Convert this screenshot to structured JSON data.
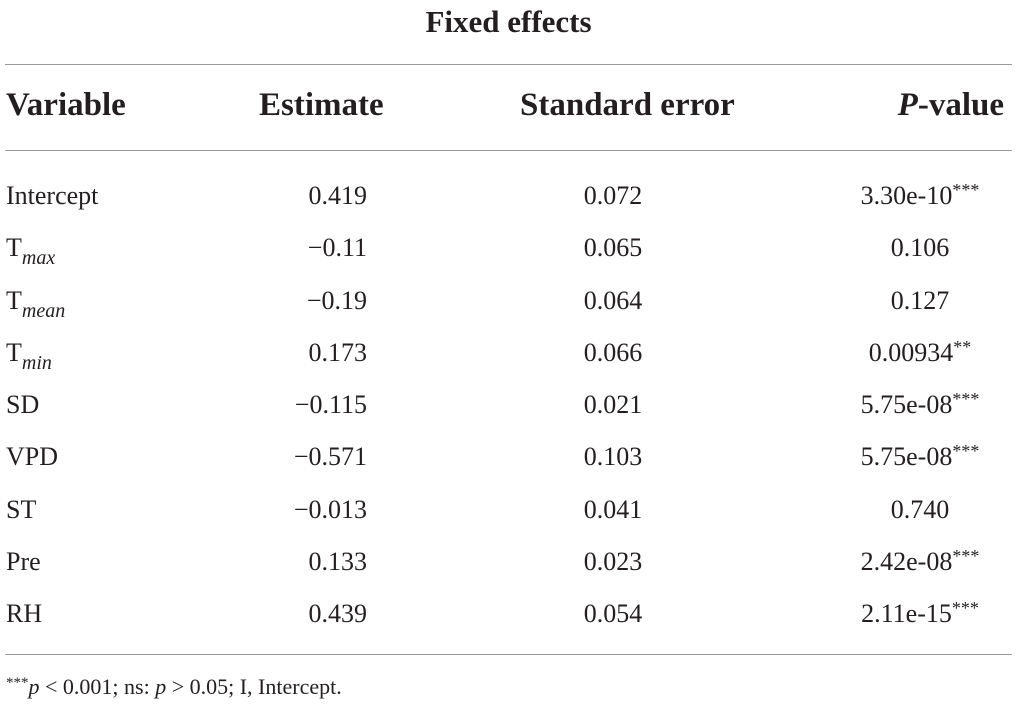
{
  "table": {
    "caption": "Fixed effects",
    "headers": {
      "variable": "Variable",
      "estimate": "Estimate",
      "standard_error": "Standard error",
      "p_value_italic": "P",
      "p_value_rest": "-value"
    },
    "rows": [
      {
        "var": "Intercept",
        "sub": "",
        "estimate": "0.419",
        "se": "0.072",
        "p": "3.30e-10",
        "stars": "***"
      },
      {
        "var": "T",
        "sub": "max",
        "estimate": "−0.11",
        "se": "0.065",
        "p": "0.106",
        "stars": ""
      },
      {
        "var": "T",
        "sub": "mean",
        "estimate": "−0.19",
        "se": "0.064",
        "p": "0.127",
        "stars": ""
      },
      {
        "var": "T",
        "sub": "min",
        "estimate": "0.173",
        "se": "0.066",
        "p": "0.00934",
        "stars": "**"
      },
      {
        "var": "SD",
        "sub": "",
        "estimate": "−0.115",
        "se": "0.021",
        "p": "5.75e-08",
        "stars": "***"
      },
      {
        "var": "VPD",
        "sub": "",
        "estimate": "−0.571",
        "se": "0.103",
        "p": "5.75e-08",
        "stars": "***"
      },
      {
        "var": "ST",
        "sub": "",
        "estimate": "−0.013",
        "se": "0.041",
        "p": "0.740",
        "stars": ""
      },
      {
        "var": "Pre",
        "sub": "",
        "estimate": "0.133",
        "se": "0.023",
        "p": "2.42e-08",
        "stars": "***"
      },
      {
        "var": "RH",
        "sub": "",
        "estimate": "0.439",
        "se": "0.054",
        "p": "2.11e-15",
        "stars": "***"
      }
    ]
  },
  "footnote": {
    "stars": "***",
    "p1": "p",
    "t1": " < 0.001; ns: ",
    "p2": "p",
    "t2": " > 0.05; I, Intercept."
  }
}
